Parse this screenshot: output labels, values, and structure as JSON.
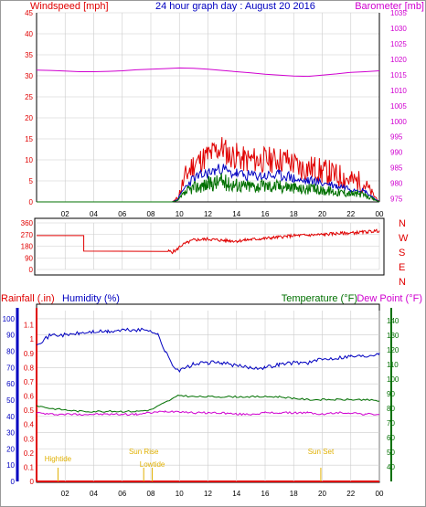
{
  "title": "24 hour graph day : August 20 2016",
  "colors": {
    "red": "#e00000",
    "blue": "#0000c0",
    "green": "#007000",
    "magenta": "#d000d0",
    "gold": "#e0b000",
    "axis": "#000000",
    "grid": "#cccccc"
  },
  "chart_data": [
    {
      "type": "line",
      "title": "24 hour graph day : August 20 2016",
      "xlabel": "",
      "x_ticks": [
        "02",
        "04",
        "06",
        "08",
        "10",
        "12",
        "14",
        "16",
        "18",
        "20",
        "22",
        "00"
      ],
      "left_axis": {
        "label": "Windspeed [mph]",
        "ylim": [
          0,
          45
        ],
        "ticks": [
          "0",
          "5",
          "10",
          "15",
          "20",
          "25",
          "30",
          "35",
          "40",
          "45"
        ]
      },
      "right_axis": {
        "label": "Barometer [mb]",
        "ylim": [
          974,
          1035
        ],
        "ticks": [
          "975",
          "980",
          "985",
          "990",
          "995",
          "1000",
          "1005",
          "1010",
          "1015",
          "1020",
          "1025",
          "1030",
          "1035"
        ]
      },
      "series": [
        {
          "name": "Windspeed [mph]",
          "axis": "left",
          "color": "red",
          "x": [
            0,
            9.5,
            9.9,
            10.2,
            10.6,
            11,
            11.5,
            12,
            12.5,
            13,
            13.5,
            14,
            14.5,
            15,
            15.5,
            16,
            16.5,
            17,
            17.5,
            18,
            18.5,
            19,
            19.5,
            20,
            20.5,
            21,
            21.5,
            22,
            22.5,
            23,
            23.5,
            24
          ],
          "y": [
            0,
            0,
            1,
            4,
            7,
            9,
            10,
            11,
            12,
            13,
            11,
            11,
            10,
            10,
            10,
            10,
            10,
            10,
            10,
            9,
            8,
            8,
            8,
            7,
            7,
            6,
            6,
            5,
            5,
            4,
            2,
            0
          ]
        },
        {
          "name": "Barometer [mb]",
          "axis": "right",
          "color": "magenta",
          "x": [
            0,
            1,
            2,
            3,
            4,
            5,
            6,
            7,
            8,
            9,
            10,
            11,
            12,
            13,
            14,
            15,
            16,
            17,
            18,
            19,
            20,
            21,
            22,
            23,
            24
          ],
          "y": [
            1016.5,
            1016.4,
            1016.2,
            1016,
            1016,
            1016.1,
            1016.3,
            1016.6,
            1016.8,
            1017,
            1017.2,
            1017.1,
            1016.8,
            1016.4,
            1016,
            1015.6,
            1015.2,
            1014.9,
            1014.6,
            1014.5,
            1014.9,
            1015.3,
            1015.8,
            1016,
            1016.3
          ]
        }
      ],
      "grid": true
    },
    {
      "type": "line",
      "title": "",
      "xlabel": "",
      "left_axis": {
        "label": "",
        "ylim": [
          0,
          360
        ],
        "ticks": [
          "0",
          "90",
          "180",
          "270",
          "360"
        ]
      },
      "right_labels": [
        "N",
        "W",
        "S",
        "E",
        "N"
      ],
      "series": [
        {
          "name": "",
          "color": "red",
          "x": [
            0,
            3.3,
            3.3,
            9.2,
            9.5,
            9.8,
            10,
            10.2,
            10.5,
            11,
            12,
            13,
            14,
            15,
            16,
            17,
            18,
            19,
            20,
            21,
            22,
            23,
            24
          ],
          "y": [
            262,
            262,
            142,
            142,
            135,
            150,
            175,
            190,
            205,
            228,
            235,
            225,
            220,
            232,
            240,
            250,
            262,
            265,
            270,
            278,
            282,
            290,
            300
          ]
        }
      ],
      "grid": true
    },
    {
      "type": "line",
      "title": "",
      "xlabel": "",
      "x_ticks": [
        "02",
        "04",
        "06",
        "08",
        "10",
        "12",
        "14",
        "16",
        "18",
        "20",
        "22",
        "00"
      ],
      "left_axis": {
        "label": "Rainfall (.in)",
        "ylim": [
          0,
          1.2
        ],
        "ticks": [
          "0",
          "0.1",
          "0.2",
          "0.3",
          "0.4",
          "0.5",
          "0.6",
          "0.7",
          "0.8",
          "0.9",
          "1",
          "1.1"
        ]
      },
      "humidity_axis": {
        "label": "Humidity (%)",
        "ylim": [
          0,
          105
        ],
        "ticks": [
          "0",
          "10",
          "20",
          "30",
          "40",
          "50",
          "60",
          "70",
          "80",
          "90",
          "100"
        ]
      },
      "right_axis": {
        "label": "Temperature (°F)",
        "ylim": [
          30,
          147
        ],
        "ticks": [
          "40",
          "50",
          "60",
          "70",
          "80",
          "90",
          "100",
          "110",
          "120",
          "130",
          "140"
        ]
      },
      "right_label_2": "Dew Point (°F)",
      "annotations": [
        {
          "text": "Hightide",
          "x": 1.5
        },
        {
          "text": "Sun Rise",
          "x": 7.5
        },
        {
          "text": "Lowtide",
          "x": 8.1
        },
        {
          "text": "Sun Set",
          "x": 19.9
        }
      ],
      "series": [
        {
          "name": "Humidity (%)",
          "color": "blue",
          "x": [
            0,
            0.3,
            1,
            2,
            3,
            4,
            5,
            6,
            7,
            8,
            8.5,
            9,
            9.5,
            10,
            11,
            12,
            13,
            14,
            15,
            16,
            17,
            18,
            19,
            20,
            21,
            22,
            23,
            24
          ],
          "y": [
            85,
            86,
            90,
            90,
            91,
            92,
            92,
            93,
            93,
            93,
            90,
            80,
            72,
            68,
            72,
            73,
            73,
            71,
            70,
            70,
            72,
            73,
            73,
            75,
            76,
            77,
            77,
            79
          ]
        },
        {
          "name": "Temperature (°F)",
          "axis": "right",
          "color": "green",
          "x": [
            0,
            1,
            2,
            3,
            4,
            5,
            6,
            7,
            8,
            9,
            10,
            11,
            12,
            13,
            14,
            15,
            16,
            17,
            18,
            19,
            20,
            21,
            22,
            23,
            24
          ],
          "y": [
            82,
            80,
            79,
            78,
            78,
            78,
            78,
            78,
            79,
            84,
            89,
            88,
            88,
            88,
            88,
            88,
            88,
            88,
            87,
            86,
            86,
            86,
            86,
            86,
            85
          ]
        },
        {
          "name": "Dew Point (°F)",
          "axis": "right",
          "color": "magenta",
          "x": [
            0,
            1,
            2,
            3,
            4,
            5,
            6,
            7,
            8,
            9,
            10,
            11,
            12,
            13,
            14,
            15,
            16,
            17,
            18,
            19,
            20,
            21,
            22,
            23,
            24
          ],
          "y": [
            77,
            76,
            76,
            76,
            76,
            76,
            76,
            76,
            77,
            78,
            78,
            77,
            77,
            77,
            76,
            76,
            77,
            77,
            77,
            77,
            76,
            77,
            77,
            76,
            76
          ]
        }
      ],
      "grid": true
    }
  ]
}
